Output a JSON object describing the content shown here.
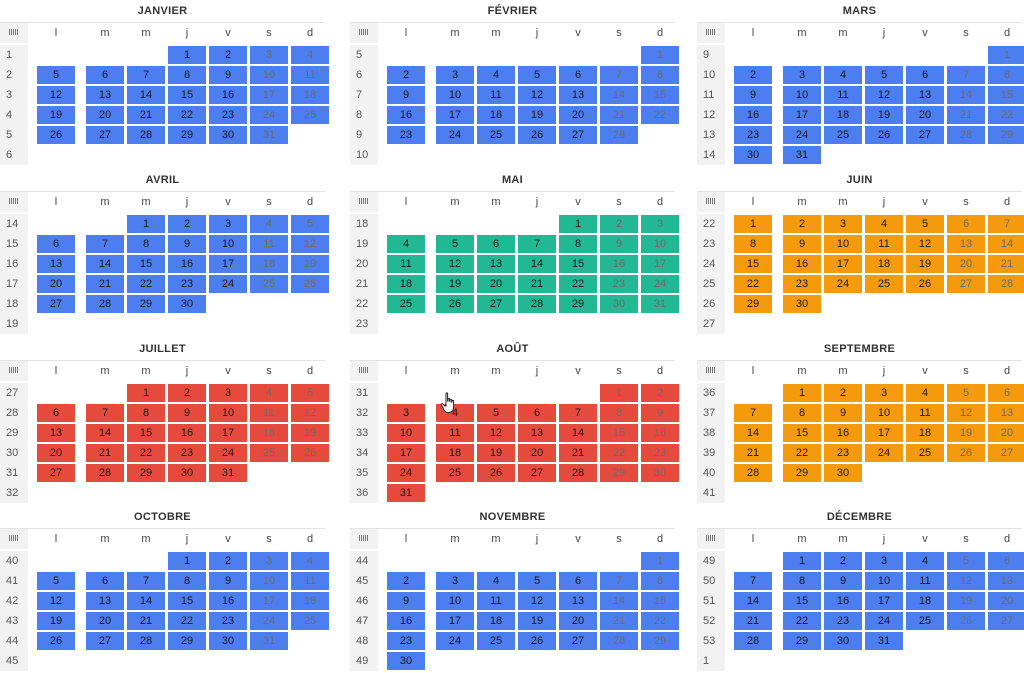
{
  "header": {
    "week_icon": "barcode-icon"
  },
  "weekdays": [
    "l",
    "m",
    "m",
    "j",
    "v",
    "s",
    "d"
  ],
  "colors": {
    "blue": "#4d7ef0",
    "green": "#22b894",
    "orange": "#f59a0c",
    "red": "#e64a3c"
  },
  "months": [
    {
      "name": "JANVIER",
      "color": "blue",
      "offset": 3,
      "days": 31,
      "weeks": [
        1,
        2,
        3,
        4,
        5,
        6
      ]
    },
    {
      "name": "FÉVRIER",
      "color": "blue",
      "offset": 6,
      "days": 28,
      "weeks": [
        5,
        6,
        7,
        8,
        9,
        10
      ]
    },
    {
      "name": "MARS",
      "color": "blue",
      "offset": 6,
      "days": 31,
      "weeks": [
        9,
        10,
        11,
        12,
        13,
        14
      ]
    },
    {
      "name": "AVRIL",
      "color": "blue",
      "offset": 2,
      "days": 30,
      "weeks": [
        14,
        15,
        16,
        17,
        18,
        19
      ]
    },
    {
      "name": "MAI",
      "color": "green",
      "offset": 4,
      "days": 31,
      "weeks": [
        18,
        19,
        20,
        21,
        22,
        23
      ]
    },
    {
      "name": "JUIN",
      "color": "orange",
      "offset": 0,
      "days": 30,
      "weeks": [
        22,
        23,
        24,
        25,
        26,
        27
      ]
    },
    {
      "name": "JUILLET",
      "color": "red",
      "offset": 2,
      "days": 31,
      "weeks": [
        27,
        28,
        29,
        30,
        31,
        32
      ]
    },
    {
      "name": "AOÛT",
      "color": "red",
      "offset": 5,
      "days": 31,
      "weeks": [
        31,
        32,
        33,
        34,
        35,
        36
      ]
    },
    {
      "name": "SEPTEMBRE",
      "color": "orange",
      "offset": 1,
      "days": 30,
      "weeks": [
        36,
        37,
        38,
        39,
        40,
        41
      ]
    },
    {
      "name": "OCTOBRE",
      "color": "blue",
      "offset": 3,
      "days": 31,
      "weeks": [
        40,
        41,
        42,
        43,
        44,
        45
      ]
    },
    {
      "name": "NOVEMBRE",
      "color": "blue",
      "offset": 6,
      "days": 30,
      "weeks": [
        44,
        45,
        46,
        47,
        48,
        49
      ]
    },
    {
      "name": "DÉCEMBRE",
      "color": "blue",
      "offset": 1,
      "days": 31,
      "weeks": [
        49,
        50,
        51,
        52,
        53,
        1
      ]
    }
  ]
}
